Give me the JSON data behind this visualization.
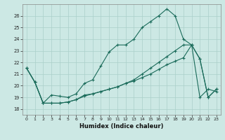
{
  "xlabel": "Humidex (Indice chaleur)",
  "bg_color": "#cce8e4",
  "line_color": "#1a6b5a",
  "grid_color": "#aacfc9",
  "xlim": [
    -0.5,
    23.5
  ],
  "ylim": [
    17.5,
    27.0
  ],
  "yticks": [
    18,
    19,
    20,
    21,
    22,
    23,
    24,
    25,
    26
  ],
  "xticks": [
    0,
    1,
    2,
    3,
    4,
    5,
    6,
    7,
    8,
    9,
    10,
    11,
    12,
    13,
    14,
    15,
    16,
    17,
    18,
    19,
    20,
    21,
    22,
    23
  ],
  "curve1_x": [
    0,
    1,
    2,
    3,
    4,
    5,
    6,
    7,
    8,
    9,
    10,
    11,
    12,
    13,
    14,
    15,
    16,
    17,
    18,
    19,
    20,
    21,
    22,
    23
  ],
  "curve1_y": [
    21.5,
    20.3,
    18.5,
    19.2,
    19.1,
    19.0,
    19.3,
    20.2,
    20.5,
    21.7,
    22.9,
    23.5,
    23.5,
    24.0,
    25.0,
    25.5,
    26.0,
    26.6,
    26.0,
    24.0,
    23.5,
    22.3,
    19.0,
    19.7
  ],
  "curve2_x": [
    0,
    1,
    2,
    3,
    4,
    5,
    6,
    7,
    8,
    9,
    10,
    11,
    12,
    13,
    14,
    15,
    16,
    17,
    18,
    19,
    20,
    21,
    22,
    23
  ],
  "curve2_y": [
    21.5,
    20.3,
    18.5,
    18.5,
    18.5,
    18.6,
    18.8,
    19.1,
    19.3,
    19.5,
    19.7,
    19.9,
    20.2,
    20.4,
    20.7,
    21.0,
    21.4,
    21.8,
    22.1,
    22.4,
    23.5,
    19.0,
    19.7,
    19.5
  ],
  "curve3_x": [
    0,
    1,
    2,
    3,
    4,
    5,
    6,
    7,
    8,
    9,
    10,
    11,
    12,
    13,
    14,
    15,
    16,
    17,
    18,
    19,
    20,
    21,
    22,
    23
  ],
  "curve3_y": [
    21.5,
    20.3,
    18.5,
    18.5,
    18.5,
    18.6,
    18.8,
    19.2,
    19.3,
    19.5,
    19.7,
    19.9,
    20.2,
    20.5,
    21.0,
    21.5,
    22.0,
    22.5,
    23.0,
    23.5,
    23.5,
    22.3,
    19.0,
    19.7
  ]
}
